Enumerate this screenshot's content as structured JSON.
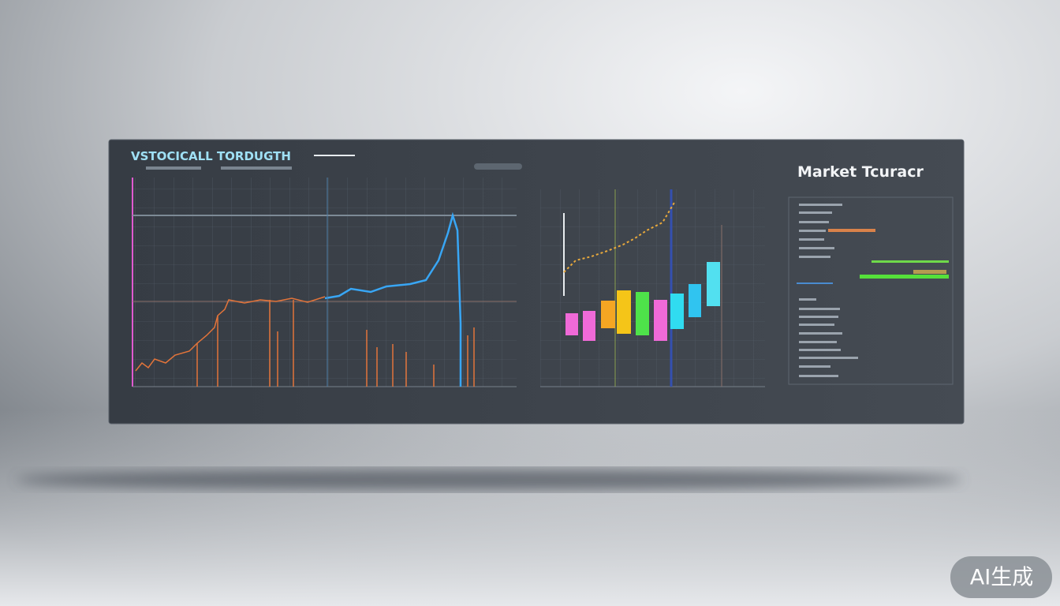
{
  "header": {
    "title": "VSTOCICALL TORDUGTH"
  },
  "panel": {
    "title": "Market Tcuracr"
  },
  "watermark": "AI生成"
}
